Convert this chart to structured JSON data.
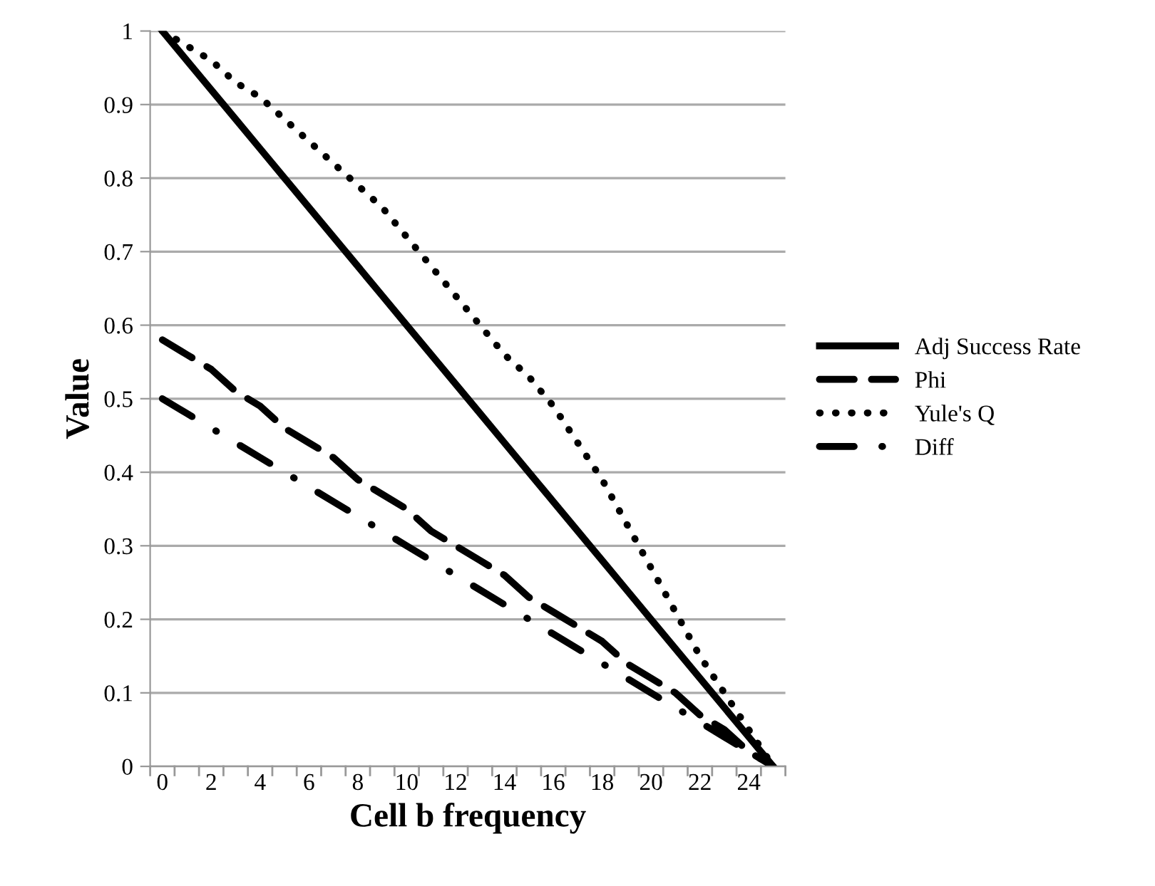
{
  "chart_data": {
    "type": "line",
    "xlabel": "Cell b frequency",
    "ylabel": "Value",
    "categories": [
      "0",
      null,
      "2",
      null,
      "4",
      null,
      "6",
      null,
      "8",
      null,
      "10",
      null,
      "12",
      null,
      "14",
      null,
      "16",
      null,
      "18",
      null,
      "20",
      null,
      "22",
      null,
      "24",
      null
    ],
    "series": [
      {
        "name": "Adj Success Rate",
        "color": "#000000",
        "line_style": "solid",
        "values": [
          1,
          0.96,
          0.92,
          0.88,
          0.84,
          0.8,
          0.76,
          0.72,
          0.68,
          0.64,
          0.6,
          0.56,
          0.52,
          0.48,
          0.44,
          0.4,
          0.36,
          0.32,
          0.28,
          0.24,
          0.2,
          0.16,
          0.12,
          0.08,
          0.04,
          0
        ]
      },
      {
        "name": "Phi",
        "color": "#000000",
        "line_style": "dashed",
        "values": [
          0.58,
          0.56,
          0.54,
          0.51,
          0.49,
          0.46,
          0.44,
          0.42,
          0.39,
          0.37,
          0.35,
          0.32,
          0.3,
          0.28,
          0.26,
          0.23,
          0.21,
          0.19,
          0.17,
          0.14,
          0.12,
          0.1,
          0.07,
          0.05,
          0.02,
          0
        ]
      },
      {
        "name": "Yule's Q",
        "color": "#000000",
        "line_style": "dotted",
        "values": [
          1,
          0.98,
          0.96,
          0.93,
          0.91,
          0.88,
          0.85,
          0.82,
          0.79,
          0.76,
          0.72,
          0.68,
          0.64,
          0.6,
          0.56,
          0.53,
          0.49,
          0.44,
          0.39,
          0.33,
          0.27,
          0.21,
          0.15,
          0.1,
          0.05,
          0
        ]
      },
      {
        "name": "Diff",
        "color": "#000000",
        "line_style": "dashdot",
        "values": [
          0.5,
          0.48,
          0.46,
          0.44,
          0.42,
          0.4,
          0.38,
          0.36,
          0.34,
          0.32,
          0.3,
          0.28,
          0.26,
          0.24,
          0.22,
          0.2,
          0.18,
          0.16,
          0.14,
          0.12,
          0.1,
          0.08,
          0.06,
          0.04,
          0.02,
          0
        ]
      }
    ],
    "ylim": [
      0,
      1
    ],
    "yticks": [
      0,
      0.1,
      0.2,
      0.3,
      0.4,
      0.5,
      0.6,
      0.7,
      0.8,
      0.9,
      1
    ],
    "grid": "y",
    "legend": "right",
    "marker": "none"
  }
}
